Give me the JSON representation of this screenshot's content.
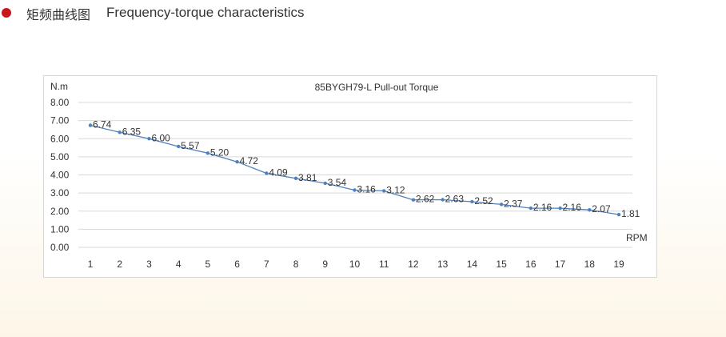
{
  "header": {
    "title_cn": "矩频曲线图",
    "title_en": "Frequency-torque characteristics",
    "bullet_color": "#c8161d"
  },
  "chart_data": {
    "type": "line",
    "title": "85BYGH79-L Pull-out Torque",
    "ylabel": "N.m",
    "xlabel": "RPM",
    "x": [
      "1",
      "2",
      "3",
      "4",
      "5",
      "6",
      "7",
      "8",
      "9",
      "10",
      "11",
      "12",
      "13",
      "14",
      "15",
      "16",
      "17",
      "18",
      "19"
    ],
    "y_ticks": [
      "0.00",
      "1.00",
      "2.00",
      "3.00",
      "4.00",
      "5.00",
      "6.00",
      "7.00",
      "8.00"
    ],
    "ylim": [
      0,
      8
    ],
    "grid": true,
    "series": [
      {
        "values": [
          6.74,
          6.35,
          6.0,
          5.57,
          5.2,
          4.72,
          4.09,
          3.81,
          3.54,
          3.16,
          3.12,
          2.62,
          2.63,
          2.52,
          2.37,
          2.16,
          2.16,
          2.07,
          1.81
        ],
        "labels": [
          "6.74",
          "6.35",
          "6.00",
          "5.57",
          "5.20",
          "4.72",
          "4.09",
          "3.81",
          "3.54",
          "3.16",
          "3.12",
          "2.62",
          "2.63",
          "2.52",
          "2.37",
          "2.16",
          "2.16",
          "2.07",
          "1.81"
        ],
        "color": "#4f81bd"
      }
    ],
    "grid_color": "#d9d9d9"
  }
}
